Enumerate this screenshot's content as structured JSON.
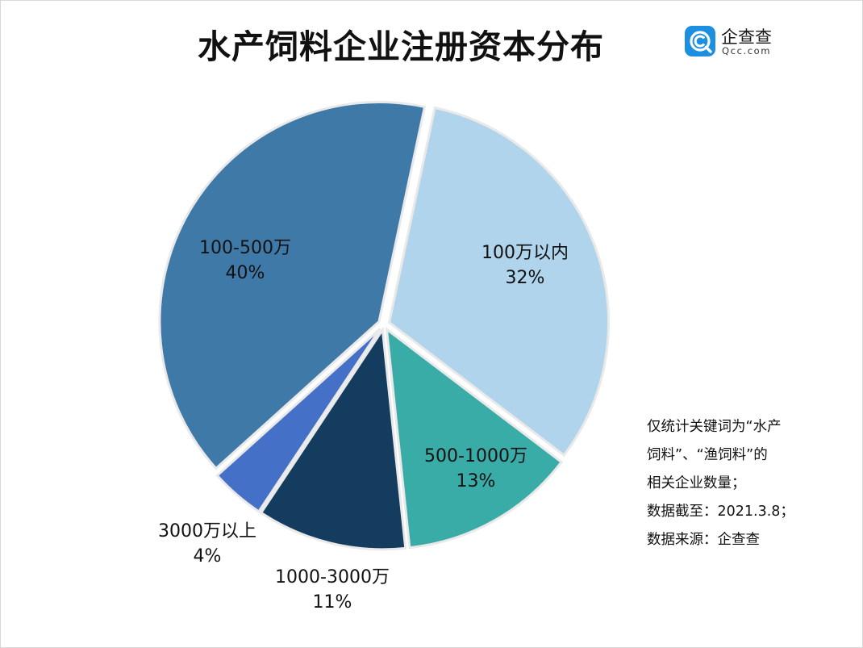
{
  "title": "水产饲料企业注册资本分布",
  "logo": {
    "name": "企查查",
    "domain": "Qcc.com",
    "brand_color": "#1d8fe0"
  },
  "chart_data": {
    "type": "pie",
    "title": "水产饲料企业注册资本分布",
    "slices": [
      {
        "label": "100万以内",
        "percent_label": "32%",
        "value": 32,
        "color": "#afd4eb"
      },
      {
        "label": "500-1000万",
        "percent_label": "13%",
        "value": 13,
        "color": "#3aaca8"
      },
      {
        "label": "1000-3000万",
        "percent_label": "11%",
        "value": 11,
        "color": "#133c5f"
      },
      {
        "label": "3000万以上",
        "percent_label": "4%",
        "value": 4,
        "color": "#4470c8"
      },
      {
        "label": "100-500万",
        "percent_label": "40%",
        "value": 40,
        "color": "#3e79a8"
      }
    ]
  },
  "note": {
    "lines": [
      "仅统计关键词为“水产",
      "饲料”、“渔饲料”的",
      "相关企业数量；",
      "数据截至：2021.3.8；",
      "数据来源：企查查"
    ]
  }
}
